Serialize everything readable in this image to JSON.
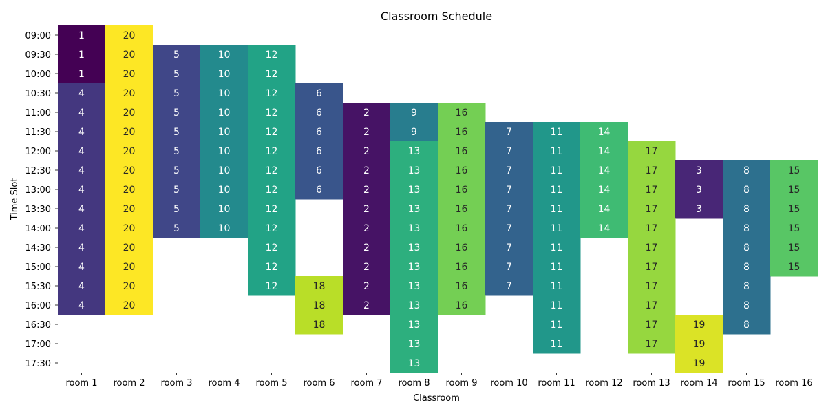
{
  "chart_data": {
    "type": "heatmap",
    "title": "Classroom Schedule",
    "xlabel": "Classroom",
    "ylabel": "Time Slot",
    "colormap": "viridis",
    "value_range": [
      1,
      20
    ],
    "rooms": [
      "room 1",
      "room 2",
      "room 3",
      "room 4",
      "room 5",
      "room 6",
      "room 7",
      "room 8",
      "room 9",
      "room 10",
      "room 11",
      "room 12",
      "room 13",
      "room 14",
      "room 15",
      "room 16"
    ],
    "time_slots": [
      "09:00",
      "09:30",
      "10:00",
      "10:30",
      "11:00",
      "11:30",
      "12:00",
      "12:30",
      "13:00",
      "13:30",
      "14:00",
      "14:30",
      "15:00",
      "15:30",
      "16:00",
      "16:30",
      "17:00",
      "17:30"
    ],
    "grid": [
      [
        1,
        20,
        null,
        null,
        null,
        null,
        null,
        null,
        null,
        null,
        null,
        null,
        null,
        null,
        null,
        null
      ],
      [
        1,
        20,
        5,
        10,
        12,
        null,
        null,
        null,
        null,
        null,
        null,
        null,
        null,
        null,
        null,
        null
      ],
      [
        1,
        20,
        5,
        10,
        12,
        null,
        null,
        null,
        null,
        null,
        null,
        null,
        null,
        null,
        null,
        null
      ],
      [
        4,
        20,
        5,
        10,
        12,
        6,
        null,
        null,
        null,
        null,
        null,
        null,
        null,
        null,
        null,
        null
      ],
      [
        4,
        20,
        5,
        10,
        12,
        6,
        2,
        9,
        16,
        null,
        null,
        null,
        null,
        null,
        null,
        null
      ],
      [
        4,
        20,
        5,
        10,
        12,
        6,
        2,
        9,
        16,
        7,
        11,
        14,
        null,
        null,
        null,
        null
      ],
      [
        4,
        20,
        5,
        10,
        12,
        6,
        2,
        13,
        16,
        7,
        11,
        14,
        17,
        null,
        null,
        null
      ],
      [
        4,
        20,
        5,
        10,
        12,
        6,
        2,
        13,
        16,
        7,
        11,
        14,
        17,
        3,
        8,
        15
      ],
      [
        4,
        20,
        5,
        10,
        12,
        6,
        2,
        13,
        16,
        7,
        11,
        14,
        17,
        3,
        8,
        15
      ],
      [
        4,
        20,
        5,
        10,
        12,
        null,
        2,
        13,
        16,
        7,
        11,
        14,
        17,
        3,
        8,
        15
      ],
      [
        4,
        20,
        5,
        10,
        12,
        null,
        2,
        13,
        16,
        7,
        11,
        14,
        17,
        null,
        8,
        15
      ],
      [
        4,
        20,
        null,
        null,
        12,
        null,
        2,
        13,
        16,
        7,
        11,
        null,
        17,
        null,
        8,
        15
      ],
      [
        4,
        20,
        null,
        null,
        12,
        null,
        2,
        13,
        16,
        7,
        11,
        null,
        17,
        null,
        8,
        15
      ],
      [
        4,
        20,
        null,
        null,
        12,
        18,
        2,
        13,
        16,
        7,
        11,
        null,
        17,
        null,
        8,
        null
      ],
      [
        4,
        20,
        null,
        null,
        null,
        18,
        2,
        13,
        16,
        null,
        11,
        null,
        17,
        null,
        8,
        null
      ],
      [
        null,
        null,
        null,
        null,
        null,
        18,
        null,
        13,
        null,
        null,
        11,
        null,
        17,
        19,
        8,
        null
      ],
      [
        null,
        null,
        null,
        null,
        null,
        null,
        null,
        13,
        null,
        null,
        11,
        null,
        17,
        19,
        null,
        null
      ],
      [
        null,
        null,
        null,
        null,
        null,
        null,
        null,
        13,
        null,
        null,
        null,
        null,
        null,
        19,
        null,
        null
      ]
    ]
  }
}
